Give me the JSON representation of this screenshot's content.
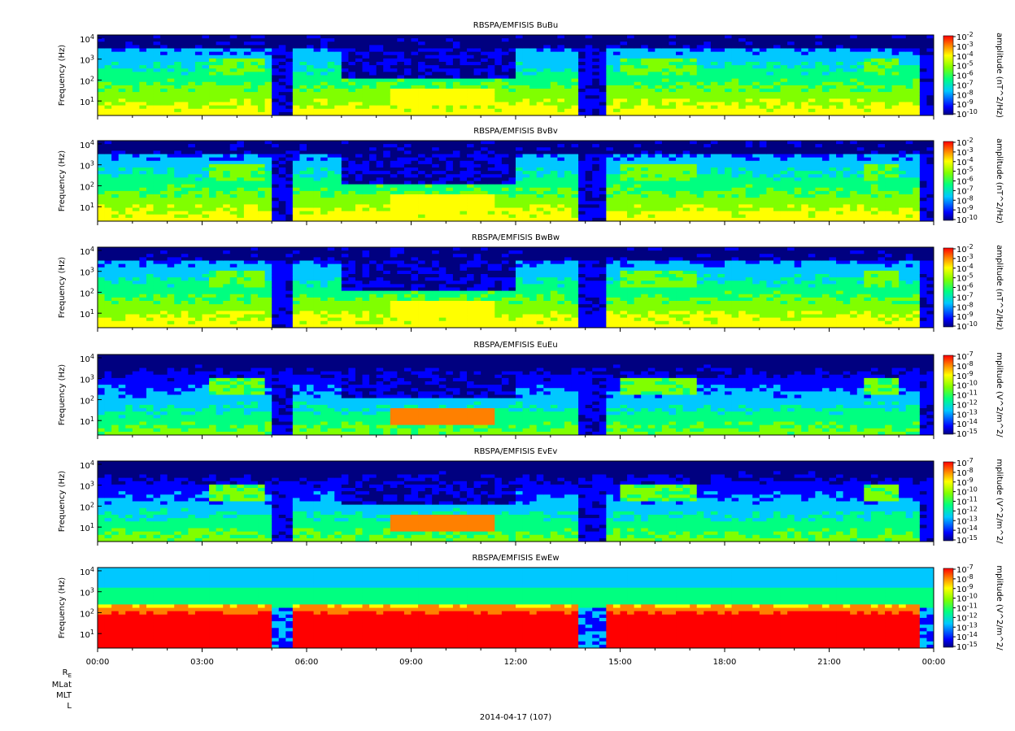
{
  "chart_data": {
    "type": "heatmap",
    "x_axis": {
      "tick_labels": [
        "00:00",
        "03:00",
        "06:00",
        "09:00",
        "12:00",
        "15:00",
        "18:00",
        "21:00",
        "00:00"
      ],
      "date_label": "2014-04-17 (107)",
      "orbit_labels": [
        "R_E",
        "MLat",
        "MLT",
        "L"
      ]
    },
    "y_axis": {
      "label": "Frequency (Hz)",
      "scale": "log",
      "tick_labels": [
        {
          "base": "10",
          "exp": "4"
        },
        {
          "base": "10",
          "exp": "3"
        },
        {
          "base": "10",
          "exp": "2"
        },
        {
          "base": "10",
          "exp": "1"
        }
      ]
    },
    "panels": [
      {
        "title": "RBSPA/EMFISIS  BuBu",
        "kind": "B",
        "colorbar_label": "amplitude (nT^2/Hz)",
        "colorbar_ticks": [
          "-2",
          "-3",
          "-4",
          "-5",
          "-6",
          "-7",
          "-8",
          "-9",
          "-10"
        ]
      },
      {
        "title": "RBSPA/EMFISIS  BvBv",
        "kind": "B",
        "colorbar_label": "amplitude (nT^2/Hz)",
        "colorbar_ticks": [
          "-2",
          "-3",
          "-4",
          "-5",
          "-6",
          "-7",
          "-8",
          "-9",
          "-10"
        ]
      },
      {
        "title": "RBSPA/EMFISIS  BwBw",
        "kind": "B",
        "colorbar_label": "amplitude (nT^2/Hz)",
        "colorbar_ticks": [
          "-2",
          "-3",
          "-4",
          "-5",
          "-6",
          "-7",
          "-8",
          "-9",
          "-10"
        ]
      },
      {
        "title": "RBSPA/EMFISIS  EuEu",
        "kind": "E",
        "colorbar_label": "mplitude (V^2/m^2/",
        "colorbar_ticks": [
          "-7",
          "-8",
          "-9",
          "-10",
          "-11",
          "-12",
          "-13",
          "-14",
          "-15"
        ]
      },
      {
        "title": "RBSPA/EMFISIS  EvEv",
        "kind": "E",
        "colorbar_label": "mplitude (V^2/m^2/",
        "colorbar_ticks": [
          "-7",
          "-8",
          "-9",
          "-10",
          "-11",
          "-12",
          "-13",
          "-14",
          "-15"
        ]
      },
      {
        "title": "RBSPA/EMFISIS  EwEw",
        "kind": "Ew",
        "colorbar_label": "mplitude (V^2/m^2/",
        "colorbar_ticks": [
          "-7",
          "-8",
          "-9",
          "-10",
          "-11",
          "-12",
          "-13",
          "-14",
          "-15"
        ]
      }
    ],
    "colormap": [
      "#000080",
      "#0000ff",
      "#00c8ff",
      "#00ff80",
      "#80ff00",
      "#ffff00",
      "#ff8000",
      "#ff0000"
    ]
  }
}
